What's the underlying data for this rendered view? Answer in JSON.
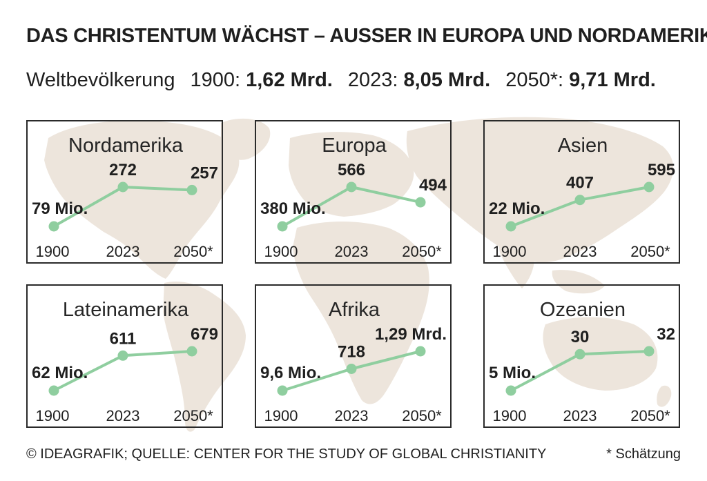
{
  "title": "DAS CHRISTENTUM WÄCHST – AUSSER IN EUROPA UND NORDAMERIKA",
  "subtitle": {
    "label": "Weltbevölkerung",
    "items": [
      {
        "year": "1900:",
        "value": "1,62 Mrd."
      },
      {
        "year": "2023:",
        "value": "8,05 Mrd."
      },
      {
        "year": "2050*:",
        "value": "9,71 Mrd."
      }
    ]
  },
  "colors": {
    "line": "#8fce9f",
    "map": "#ede5dc",
    "border": "#2a2a2a",
    "text": "#1f1f1f"
  },
  "chart_data": [
    {
      "type": "line",
      "title": "Nordamerika",
      "x": [
        "1900",
        "2023",
        "2050*"
      ],
      "values": [
        79,
        272,
        257
      ],
      "value_labels": [
        "79 Mio.",
        "272",
        "257"
      ],
      "unit": "Mio."
    },
    {
      "type": "line",
      "title": "Europa",
      "x": [
        "1900",
        "2023",
        "2050*"
      ],
      "values": [
        380,
        566,
        494
      ],
      "value_labels": [
        "380 Mio.",
        "566",
        "494"
      ],
      "unit": "Mio."
    },
    {
      "type": "line",
      "title": "Asien",
      "x": [
        "1900",
        "2023",
        "2050*"
      ],
      "values": [
        22,
        407,
        595
      ],
      "value_labels": [
        "22 Mio.",
        "407",
        "595"
      ],
      "unit": "Mio."
    },
    {
      "type": "line",
      "title": "Lateinamerika",
      "x": [
        "1900",
        "2023",
        "2050*"
      ],
      "values": [
        62,
        611,
        679
      ],
      "value_labels": [
        "62 Mio.",
        "611",
        "679"
      ],
      "unit": "Mio."
    },
    {
      "type": "line",
      "title": "Afrika",
      "x": [
        "1900",
        "2023",
        "2050*"
      ],
      "values": [
        9.6,
        718,
        1290
      ],
      "value_labels": [
        "9,6 Mio.",
        "718",
        "1,29 Mrd."
      ],
      "unit": "Mio."
    },
    {
      "type": "line",
      "title": "Ozeanien",
      "x": [
        "1900",
        "2023",
        "2050*"
      ],
      "values": [
        5,
        30,
        32
      ],
      "value_labels": [
        "5 Mio.",
        "30",
        "32"
      ],
      "unit": "Mio."
    }
  ],
  "footer": {
    "credit": "© IDEAGRAFIK; QUELLE: CENTER FOR THE STUDY OF GLOBAL CHRISTIANITY",
    "note": "* Schätzung"
  }
}
